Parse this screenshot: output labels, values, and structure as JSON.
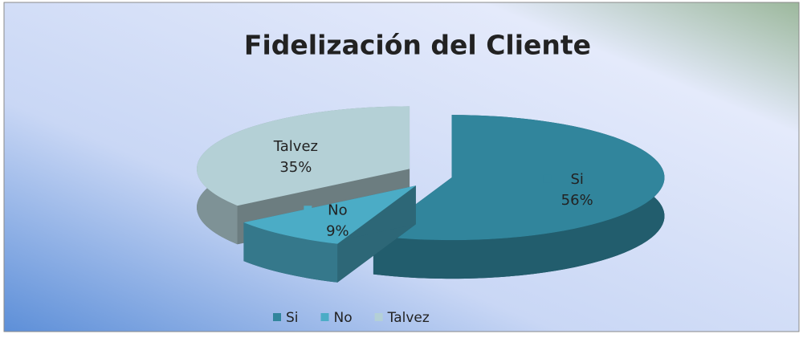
{
  "chart_data": {
    "type": "pie",
    "title": "Fidelización del Cliente",
    "categories": [
      "Si",
      "No",
      "Talvez"
    ],
    "values": [
      56,
      9,
      35
    ],
    "value_labels": [
      "56%",
      "9%",
      "35%"
    ],
    "colors": [
      "#31859c",
      "#4bacc6",
      "#b4d0d6"
    ],
    "legend": "bottom"
  }
}
